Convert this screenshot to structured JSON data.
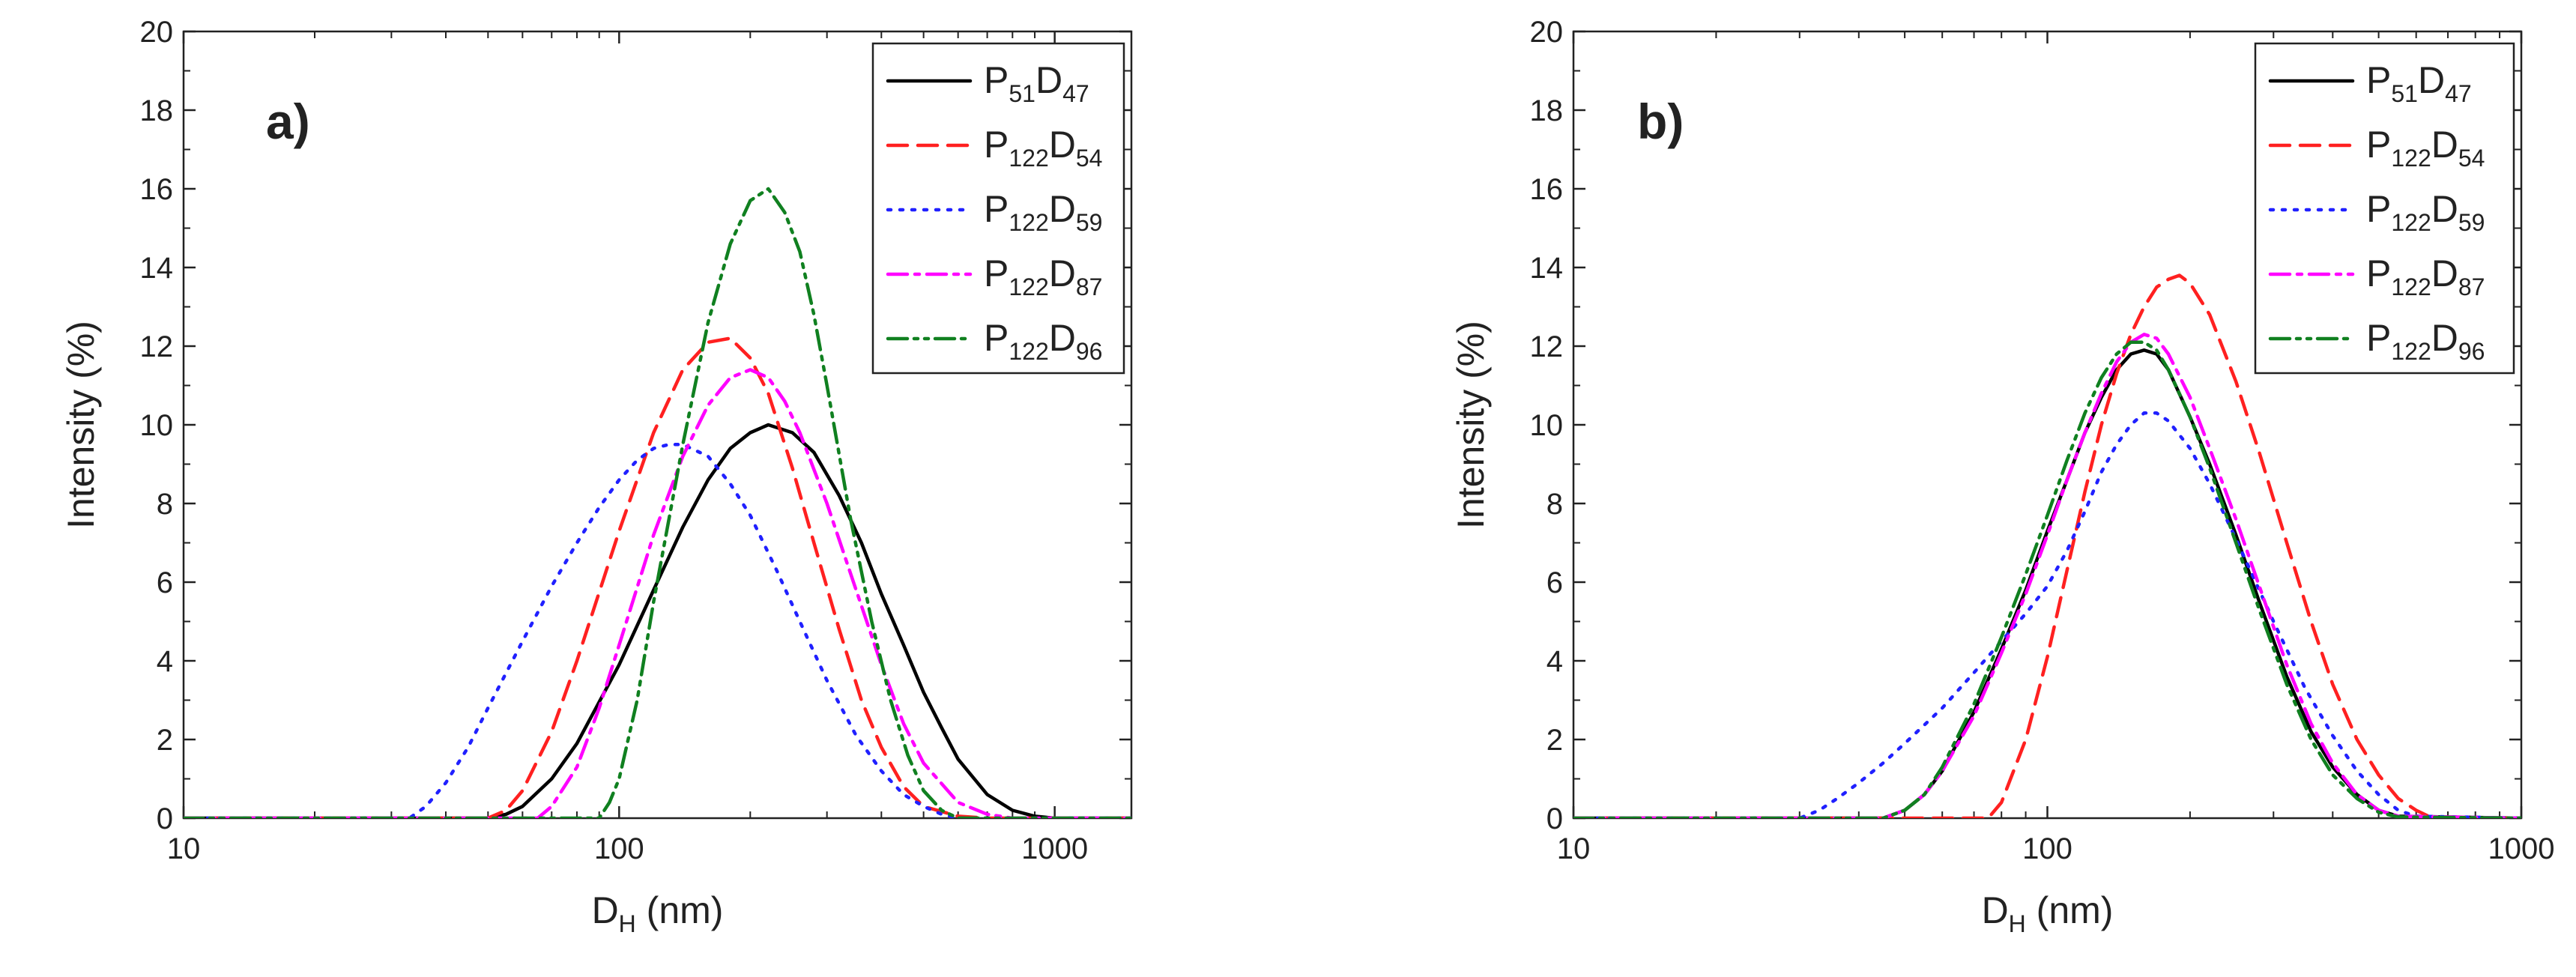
{
  "chart_data": [
    {
      "type": "line",
      "panel_label": "a)",
      "xlabel": "D",
      "xlabel_subscript": "H",
      "xlabel_unit": "(nm)",
      "ylabel": "Intensity (%)",
      "xscale": "log",
      "xlim": [
        10,
        1500
      ],
      "ylim": [
        0,
        20
      ],
      "x_ticks": [
        10,
        100,
        1000
      ],
      "x_tick_labels": [
        "10",
        "100",
        "1000"
      ],
      "y_ticks": [
        0,
        2,
        4,
        6,
        8,
        10,
        12,
        14,
        16,
        18,
        20
      ],
      "y_tick_labels": [
        "0",
        "2",
        "4",
        "6",
        "8",
        "10",
        "12",
        "14",
        "16",
        "18",
        "20"
      ],
      "legend_position": "top-right",
      "series": [
        {
          "name": "P51D47",
          "label_main": "P",
          "label_sub1": "51",
          "label_mid": "D",
          "label_sub2": "47",
          "color": "#000000",
          "dash": "solid",
          "x": [
            10,
            50,
            55,
            60,
            70,
            80,
            100,
            120,
            140,
            160,
            180,
            200,
            220,
            250,
            280,
            320,
            360,
            400,
            450,
            500,
            550,
            600,
            700,
            800,
            900,
            1000,
            1500
          ],
          "y": [
            0,
            0,
            0.1,
            0.3,
            1.0,
            1.9,
            3.9,
            5.8,
            7.4,
            8.6,
            9.4,
            9.8,
            10.0,
            9.8,
            9.3,
            8.2,
            7.0,
            5.7,
            4.4,
            3.2,
            2.3,
            1.5,
            0.6,
            0.2,
            0.05,
            0,
            0
          ]
        },
        {
          "name": "P122D54",
          "label_main": "P",
          "label_sub1": "122",
          "label_mid": "D",
          "label_sub2": "54",
          "color": "#ff2020",
          "dash": "long",
          "x": [
            10,
            50,
            55,
            60,
            70,
            80,
            100,
            120,
            140,
            160,
            180,
            200,
            220,
            250,
            280,
            320,
            360,
            400,
            450,
            500,
            600,
            700,
            800,
            1500
          ],
          "y": [
            0,
            0,
            0.2,
            0.7,
            2.2,
            4.0,
            7.3,
            9.8,
            11.4,
            12.1,
            12.2,
            11.7,
            10.8,
            8.9,
            7.0,
            4.8,
            3.0,
            1.8,
            0.8,
            0.3,
            0.05,
            0,
            0,
            0
          ]
        },
        {
          "name": "P122D59",
          "label_main": "P",
          "label_sub1": "122",
          "label_mid": "D",
          "label_sub2": "59",
          "color": "#2020ff",
          "dash": "dot",
          "x": [
            10,
            33,
            36,
            40,
            45,
            50,
            60,
            70,
            80,
            90,
            100,
            110,
            120,
            130,
            140,
            160,
            180,
            200,
            230,
            260,
            300,
            350,
            400,
            450,
            500,
            550,
            600,
            1500
          ],
          "y": [
            0,
            0,
            0.3,
            0.9,
            1.8,
            2.8,
            4.5,
            5.9,
            7.0,
            7.9,
            8.6,
            9.1,
            9.4,
            9.5,
            9.5,
            9.2,
            8.5,
            7.7,
            6.3,
            5.0,
            3.5,
            2.1,
            1.2,
            0.6,
            0.3,
            0.1,
            0,
            0
          ]
        },
        {
          "name": "P122D87",
          "label_main": "P",
          "label_sub1": "122",
          "label_mid": "D",
          "label_sub2": "87",
          "color": "#ff00ff",
          "dash": "dashdot",
          "x": [
            10,
            65,
            70,
            80,
            90,
            100,
            120,
            140,
            160,
            180,
            200,
            220,
            240,
            260,
            300,
            350,
            400,
            450,
            500,
            600,
            700,
            800,
            1500
          ],
          "y": [
            0,
            0,
            0.3,
            1.3,
            2.8,
            4.4,
            7.2,
            9.2,
            10.5,
            11.2,
            11.4,
            11.2,
            10.6,
            9.8,
            8.0,
            5.8,
            3.9,
            2.4,
            1.4,
            0.4,
            0.1,
            0,
            0
          ]
        },
        {
          "name": "P122D96",
          "label_main": "P",
          "label_sub1": "122",
          "label_mid": "D",
          "label_sub2": "96",
          "color": "#108020",
          "dash": "dashdotdot",
          "x": [
            10,
            90,
            95,
            100,
            110,
            120,
            140,
            160,
            180,
            200,
            220,
            240,
            260,
            280,
            300,
            340,
            380,
            420,
            460,
            500,
            550,
            600,
            1500
          ],
          "y": [
            0,
            0,
            0.4,
            1.0,
            3.0,
            5.5,
            9.5,
            12.6,
            14.6,
            15.7,
            16.0,
            15.4,
            14.4,
            12.8,
            11.0,
            7.6,
            5.0,
            3.0,
            1.6,
            0.7,
            0.2,
            0,
            0
          ]
        }
      ],
      "legend": [
        {
          "main": "P",
          "sub1": "51",
          "mid": "D",
          "sub2": "47"
        },
        {
          "main": "P",
          "sub1": "122",
          "mid": "D",
          "sub2": "54"
        },
        {
          "main": "P",
          "sub1": "122",
          "mid": "D",
          "sub2": "59"
        },
        {
          "main": "P",
          "sub1": "122",
          "mid": "D",
          "sub2": "87"
        },
        {
          "main": "P",
          "sub1": "122",
          "mid": "D",
          "sub2": "96"
        }
      ]
    },
    {
      "type": "line",
      "panel_label": "b)",
      "xlabel": "D",
      "xlabel_subscript": "H",
      "xlabel_unit": "(nm)",
      "ylabel": "Intensity (%)",
      "xscale": "log",
      "xlim": [
        10,
        1000
      ],
      "ylim": [
        0,
        20
      ],
      "x_ticks": [
        10,
        100,
        1000
      ],
      "x_tick_labels": [
        "10",
        "100",
        "1000"
      ],
      "y_ticks": [
        0,
        2,
        4,
        6,
        8,
        10,
        12,
        14,
        16,
        18,
        20
      ],
      "y_tick_labels": [
        "0",
        "2",
        "4",
        "6",
        "8",
        "10",
        "12",
        "14",
        "16",
        "18",
        "20"
      ],
      "legend_position": "top-right",
      "series": [
        {
          "name": "P51D47",
          "color": "#000000",
          "dash": "solid",
          "x": [
            10,
            45,
            50,
            55,
            60,
            70,
            80,
            90,
            100,
            110,
            120,
            130,
            140,
            150,
            160,
            170,
            180,
            200,
            220,
            250,
            280,
            320,
            360,
            400,
            450,
            500,
            550,
            1000
          ],
          "y": [
            0,
            0,
            0.2,
            0.6,
            1.2,
            2.7,
            4.3,
            5.8,
            7.3,
            8.6,
            9.8,
            10.7,
            11.4,
            11.8,
            11.9,
            11.8,
            11.4,
            10.2,
            9.0,
            7.2,
            5.5,
            3.6,
            2.2,
            1.3,
            0.6,
            0.2,
            0.05,
            0
          ]
        },
        {
          "name": "P122D54",
          "color": "#ff2020",
          "dash": "long",
          "x": [
            10,
            75,
            80,
            90,
            100,
            110,
            120,
            130,
            140,
            150,
            160,
            170,
            180,
            190,
            200,
            220,
            250,
            280,
            320,
            360,
            400,
            450,
            500,
            550,
            600,
            650,
            1000
          ],
          "y": [
            0,
            0,
            0.4,
            2.0,
            4.1,
            6.3,
            8.3,
            10.0,
            11.3,
            12.3,
            13.0,
            13.5,
            13.7,
            13.8,
            13.6,
            12.8,
            11.1,
            9.3,
            7.0,
            5.0,
            3.4,
            2.0,
            1.1,
            0.5,
            0.2,
            0,
            0
          ]
        },
        {
          "name": "P122D59",
          "color": "#2020ff",
          "dash": "dot",
          "x": [
            10,
            30,
            33,
            36,
            40,
            45,
            50,
            60,
            70,
            80,
            90,
            100,
            110,
            120,
            130,
            140,
            150,
            160,
            170,
            180,
            200,
            220,
            250,
            300,
            350,
            400,
            450,
            500,
            550,
            600,
            1000
          ],
          "y": [
            0,
            0,
            0.2,
            0.5,
            0.9,
            1.4,
            1.9,
            2.8,
            3.7,
            4.5,
            5.2,
            5.9,
            6.8,
            7.8,
            8.8,
            9.5,
            10.0,
            10.3,
            10.3,
            10.1,
            9.4,
            8.5,
            7.1,
            5.0,
            3.3,
            2.1,
            1.2,
            0.6,
            0.2,
            0.05,
            0
          ]
        },
        {
          "name": "P122D87",
          "color": "#ff00ff",
          "dash": "dashdot",
          "x": [
            10,
            45,
            50,
            55,
            60,
            70,
            80,
            90,
            100,
            110,
            120,
            130,
            140,
            150,
            160,
            170,
            180,
            200,
            220,
            250,
            280,
            320,
            360,
            400,
            450,
            500,
            550,
            1000
          ],
          "y": [
            0,
            0,
            0.2,
            0.6,
            1.2,
            2.6,
            4.2,
            5.7,
            7.2,
            8.6,
            9.8,
            10.8,
            11.6,
            12.1,
            12.3,
            12.2,
            11.8,
            10.7,
            9.4,
            7.6,
            5.9,
            3.9,
            2.4,
            1.4,
            0.6,
            0.2,
            0.05,
            0
          ]
        },
        {
          "name": "P122D96",
          "color": "#108020",
          "dash": "dashdotdot",
          "x": [
            10,
            45,
            50,
            55,
            60,
            70,
            80,
            90,
            100,
            110,
            120,
            130,
            140,
            150,
            160,
            170,
            180,
            200,
            220,
            250,
            280,
            320,
            360,
            400,
            450,
            500,
            550,
            1000
          ],
          "y": [
            0,
            0,
            0.2,
            0.6,
            1.3,
            2.9,
            4.6,
            6.2,
            7.7,
            9.1,
            10.3,
            11.2,
            11.8,
            12.1,
            12.1,
            11.9,
            11.4,
            10.2,
            8.9,
            7.0,
            5.3,
            3.4,
            2.0,
            1.1,
            0.5,
            0.15,
            0.03,
            0
          ]
        }
      ],
      "legend": [
        {
          "main": "P",
          "sub1": "51",
          "mid": "D",
          "sub2": "47"
        },
        {
          "main": "P",
          "sub1": "122",
          "mid": "D",
          "sub2": "54"
        },
        {
          "main": "P",
          "sub1": "122",
          "mid": "D",
          "sub2": "59"
        },
        {
          "main": "P",
          "sub1": "122",
          "mid": "D",
          "sub2": "87"
        },
        {
          "main": "P",
          "sub1": "122",
          "mid": "D",
          "sub2": "96"
        }
      ]
    }
  ]
}
